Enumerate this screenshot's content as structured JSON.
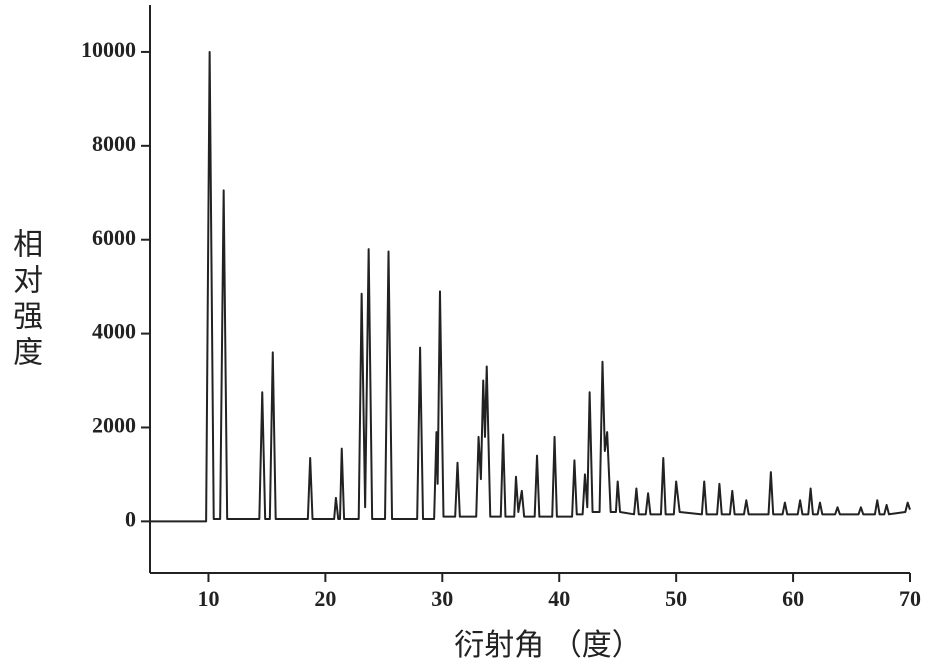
{
  "chart_data": {
    "type": "line",
    "x_label": "衍射角 （度）",
    "y_label": "相对强度",
    "xlim": [
      5,
      70
    ],
    "ylim": [
      -1100,
      11000
    ],
    "xticks": [
      10,
      20,
      30,
      40,
      50,
      60,
      70
    ],
    "yticks": [
      0,
      2000,
      4000,
      6000,
      8000,
      10000
    ],
    "grid": false,
    "series": [
      {
        "color": "#222222",
        "x": [
          5,
          9.8,
          10.1,
          10.45,
          11.0,
          11.3,
          11.6,
          14.35,
          14.6,
          14.85,
          15.25,
          15.5,
          15.75,
          18.5,
          18.7,
          18.9,
          20.75,
          20.9,
          21.1,
          21.25,
          21.4,
          21.6,
          22.85,
          23.1,
          23.4,
          23.7,
          24.0,
          25.1,
          25.4,
          25.7,
          27.85,
          28.1,
          28.35,
          29.3,
          29.5,
          29.6,
          29.8,
          30.1,
          31.1,
          31.3,
          31.5,
          32.9,
          33.1,
          33.3,
          33.5,
          33.65,
          33.8,
          34.1,
          35.0,
          35.2,
          35.4,
          36.15,
          36.3,
          36.5,
          36.8,
          37.0,
          37.9,
          38.1,
          38.3,
          39.4,
          39.6,
          39.8,
          41.1,
          41.3,
          41.5,
          42.0,
          42.2,
          42.4,
          42.6,
          42.85,
          43.45,
          43.7,
          43.9,
          44.1,
          44.4,
          44.85,
          45.0,
          45.2,
          46.4,
          46.6,
          46.8,
          47.4,
          47.6,
          47.8,
          48.7,
          48.9,
          49.1,
          49.8,
          50.0,
          50.3,
          52.2,
          52.4,
          52.6,
          53.5,
          53.7,
          53.9,
          54.6,
          54.8,
          55.0,
          55.8,
          56.0,
          56.2,
          57.9,
          58.1,
          58.3,
          59.1,
          59.3,
          59.5,
          60.4,
          60.6,
          60.8,
          61.3,
          61.5,
          61.7,
          62.1,
          62.3,
          62.5,
          63.6,
          63.8,
          64.0,
          65.6,
          65.8,
          66.0,
          67.0,
          67.2,
          67.4,
          67.8,
          68.0,
          68.2,
          69.6,
          69.8,
          70.0
        ],
        "values": [
          0,
          0,
          10000,
          50,
          50,
          7050,
          50,
          50,
          2750,
          50,
          50,
          3600,
          50,
          50,
          1350,
          50,
          50,
          500,
          50,
          50,
          1550,
          50,
          50,
          4850,
          300,
          5800,
          50,
          50,
          5750,
          50,
          50,
          3700,
          50,
          50,
          1900,
          800,
          4900,
          100,
          100,
          1250,
          100,
          100,
          1800,
          900,
          3000,
          1800,
          3300,
          100,
          100,
          1850,
          100,
          100,
          950,
          200,
          650,
          100,
          100,
          1400,
          100,
          100,
          1800,
          100,
          100,
          1300,
          150,
          150,
          1000,
          300,
          2750,
          200,
          200,
          3400,
          1500,
          1900,
          200,
          200,
          850,
          200,
          150,
          700,
          150,
          150,
          600,
          150,
          150,
          1350,
          150,
          150,
          850,
          200,
          150,
          850,
          150,
          150,
          800,
          150,
          150,
          650,
          150,
          150,
          450,
          150,
          150,
          1050,
          150,
          150,
          400,
          150,
          150,
          450,
          150,
          150,
          700,
          150,
          150,
          400,
          150,
          150,
          300,
          150,
          150,
          300,
          150,
          150,
          450,
          150,
          150,
          350,
          150,
          200,
          400,
          250
        ]
      }
    ]
  }
}
